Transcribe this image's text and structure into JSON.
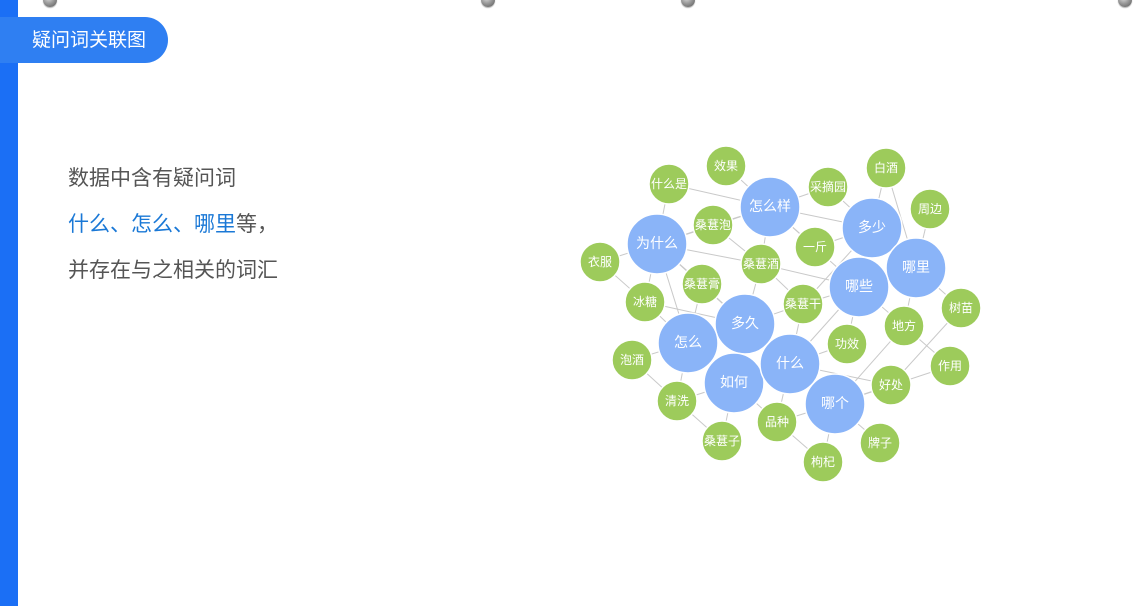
{
  "header": {
    "title": "疑问词关联图"
  },
  "intro": {
    "line1": "数据中含有疑问词",
    "line2": {
      "keywords": [
        "什么",
        "怎么",
        "哪里"
      ],
      "separator": "、",
      "suffix": "等，"
    },
    "line3": "并存在与之相关的词汇"
  },
  "colors": {
    "accent": "#1b6ff5",
    "question_node": "#8ab4f8",
    "related_node": "#9dcb5b",
    "edge": "#c9c9c9",
    "keyword": "#1a78d6"
  },
  "graph": {
    "question_words": [
      "为什么",
      "怎么样",
      "多少",
      "哪里",
      "哪些",
      "多久",
      "怎么",
      "如何",
      "什么",
      "哪个"
    ],
    "related_words": [
      "效果",
      "什么是",
      "采摘园",
      "白酒",
      "周边",
      "桑葚泡",
      "一斤",
      "桑葚酒",
      "衣服",
      "桑葚膏",
      "冰糖",
      "桑葚干",
      "树苗",
      "地方",
      "功效",
      "泡酒",
      "作用",
      "好处",
      "清洗",
      "品种",
      "桑葚子",
      "牌子",
      "枸杞"
    ]
  }
}
